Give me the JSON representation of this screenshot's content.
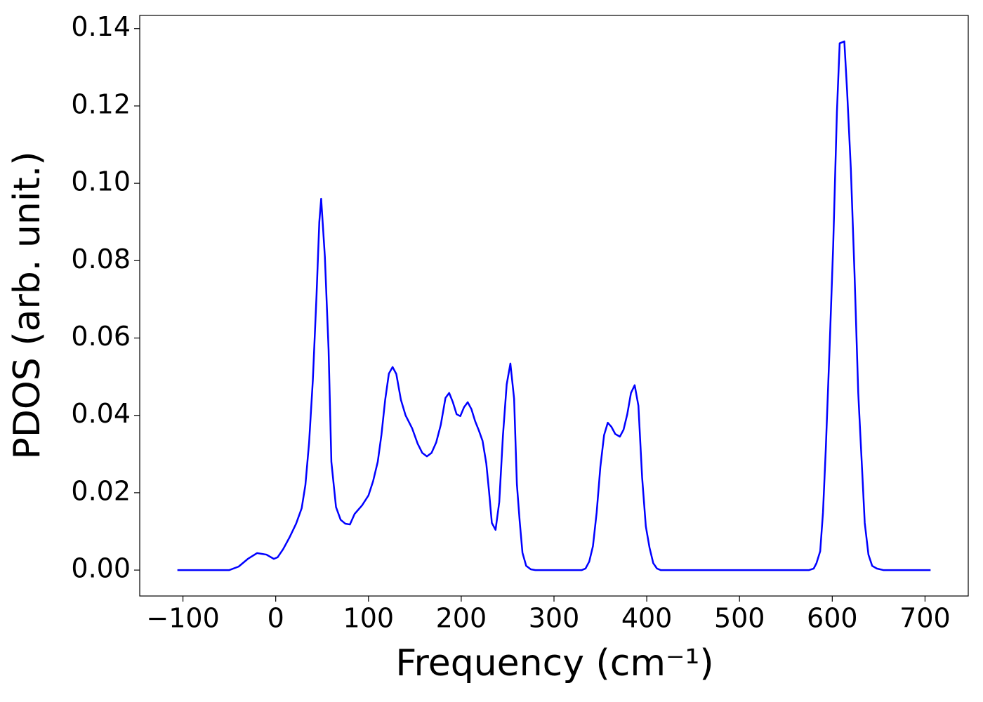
{
  "chart_data": {
    "type": "line",
    "xlabel": "Frequency (cm⁻¹)",
    "ylabel": "PDOS (arb. unit.)",
    "x": [
      -106,
      -50,
      -40,
      -30,
      -20,
      -10,
      -2,
      2,
      8,
      15,
      22,
      28,
      32,
      36,
      40,
      44,
      47,
      49,
      53,
      57,
      60,
      65,
      70,
      75,
      80,
      85,
      93,
      100,
      105,
      110,
      114,
      118,
      122,
      126,
      130,
      135,
      140,
      147,
      153,
      158,
      163,
      168,
      173,
      178,
      183,
      187,
      191,
      195,
      199,
      203,
      207,
      211,
      215,
      219,
      223,
      227,
      230,
      233,
      237,
      241,
      245,
      249,
      253,
      257,
      260,
      263,
      266,
      270,
      275,
      280,
      330,
      334,
      338,
      342,
      346,
      350,
      354,
      358,
      362,
      366,
      371,
      375,
      379,
      383,
      387,
      391,
      395,
      399,
      403,
      407,
      411,
      415,
      575,
      580,
      583,
      587,
      590,
      593,
      597,
      601,
      605,
      608,
      613,
      616,
      620,
      624,
      628,
      632,
      635,
      639,
      643,
      648,
      655,
      706
    ],
    "series": [
      {
        "color": "#0000ff",
        "values": [
          0,
          0,
          0.0009,
          0.0029,
          0.0044,
          0.004,
          0.0029,
          0.0033,
          0.0054,
          0.0085,
          0.012,
          0.016,
          0.022,
          0.033,
          0.049,
          0.071,
          0.09,
          0.096,
          0.081,
          0.057,
          0.028,
          0.0163,
          0.013,
          0.012,
          0.0118,
          0.0145,
          0.0167,
          0.0193,
          0.023,
          0.028,
          0.035,
          0.044,
          0.0508,
          0.0525,
          0.0507,
          0.044,
          0.04,
          0.0367,
          0.0327,
          0.0303,
          0.0294,
          0.0303,
          0.033,
          0.0376,
          0.0445,
          0.0458,
          0.0434,
          0.0403,
          0.0398,
          0.0421,
          0.0434,
          0.0416,
          0.0385,
          0.0361,
          0.0334,
          0.0276,
          0.0203,
          0.0122,
          0.0104,
          0.0176,
          0.0349,
          0.048,
          0.0534,
          0.0443,
          0.0222,
          0.0127,
          0.0045,
          0.0011,
          0.0002,
          0,
          0,
          0.0004,
          0.0022,
          0.0062,
          0.0149,
          0.0267,
          0.0349,
          0.0381,
          0.037,
          0.0352,
          0.0345,
          0.0363,
          0.0403,
          0.0458,
          0.0478,
          0.0425,
          0.024,
          0.0113,
          0.0058,
          0.0018,
          0.0004,
          0,
          0,
          0.0004,
          0.0018,
          0.0049,
          0.0149,
          0.0312,
          0.0567,
          0.0839,
          0.1184,
          0.1362,
          0.1367,
          0.1238,
          0.1039,
          0.0766,
          0.0458,
          0.0267,
          0.0122,
          0.004,
          0.0011,
          0.0004,
          0,
          0
        ]
      }
    ],
    "xlim": [
      -146.6,
      746.6
    ],
    "ylim": [
      -0.0067,
      0.1434
    ],
    "xticks": [
      {
        "value": -100,
        "label": "−100"
      },
      0,
      100,
      200,
      300,
      400,
      500,
      600,
      700
    ],
    "yticks": [
      {
        "value": 0,
        "label": "0.00"
      },
      0.02,
      0.04,
      0.06,
      0.08,
      {
        "value": 0.1,
        "label": "0.10"
      },
      0.12,
      0.14
    ]
  }
}
